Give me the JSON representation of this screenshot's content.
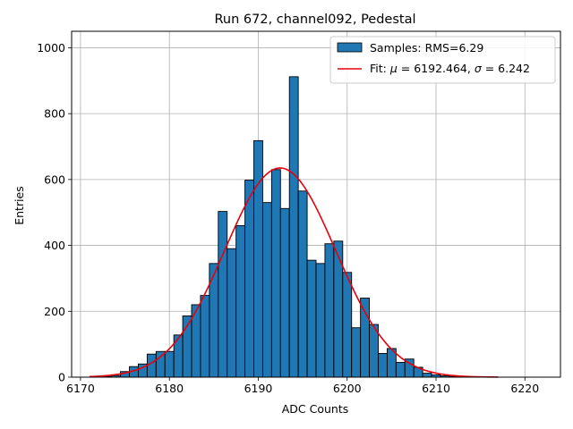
{
  "chart_data": {
    "type": "bar",
    "title": "Run 672, channel092, Pedestal",
    "xlabel": "ADC Counts",
    "ylabel": "Entries",
    "xlim": [
      6169,
      6224
    ],
    "ylim": [
      0,
      1050
    ],
    "grid": true,
    "legend_position": "top-right",
    "xticks": [
      6170,
      6180,
      6190,
      6200,
      6210,
      6220
    ],
    "yticks": [
      0,
      200,
      400,
      600,
      800,
      1000
    ],
    "bin_width": 1,
    "bins": [
      {
        "x": 6173,
        "value": 2
      },
      {
        "x": 6174,
        "value": 5
      },
      {
        "x": 6175,
        "value": 17
      },
      {
        "x": 6176,
        "value": 32
      },
      {
        "x": 6177,
        "value": 40
      },
      {
        "x": 6178,
        "value": 70
      },
      {
        "x": 6179,
        "value": 78
      },
      {
        "x": 6180,
        "value": 78
      },
      {
        "x": 6181,
        "value": 128
      },
      {
        "x": 6182,
        "value": 186
      },
      {
        "x": 6183,
        "value": 220
      },
      {
        "x": 6184,
        "value": 248
      },
      {
        "x": 6185,
        "value": 345
      },
      {
        "x": 6186,
        "value": 503
      },
      {
        "x": 6187,
        "value": 390
      },
      {
        "x": 6188,
        "value": 460
      },
      {
        "x": 6189,
        "value": 598
      },
      {
        "x": 6190,
        "value": 718
      },
      {
        "x": 6191,
        "value": 530
      },
      {
        "x": 6192,
        "value": 630
      },
      {
        "x": 6193,
        "value": 512
      },
      {
        "x": 6194,
        "value": 912
      },
      {
        "x": 6195,
        "value": 565
      },
      {
        "x": 6196,
        "value": 355
      },
      {
        "x": 6197,
        "value": 345
      },
      {
        "x": 6198,
        "value": 405
      },
      {
        "x": 6199,
        "value": 413
      },
      {
        "x": 6200,
        "value": 318
      },
      {
        "x": 6201,
        "value": 150
      },
      {
        "x": 6202,
        "value": 240
      },
      {
        "x": 6203,
        "value": 160
      },
      {
        "x": 6204,
        "value": 72
      },
      {
        "x": 6205,
        "value": 87
      },
      {
        "x": 6206,
        "value": 45
      },
      {
        "x": 6207,
        "value": 55
      },
      {
        "x": 6208,
        "value": 30
      },
      {
        "x": 6209,
        "value": 12
      },
      {
        "x": 6210,
        "value": 7
      },
      {
        "x": 6211,
        "value": 4
      },
      {
        "x": 6212,
        "value": 2
      }
    ],
    "fit": {
      "mu": 6192.464,
      "sigma": 6.242,
      "amplitude": 635,
      "x_range": [
        6171,
        6217
      ]
    },
    "series": [
      {
        "name": "Samples: RMS=6.29",
        "kind": "histogram",
        "color": "#1f77b4"
      },
      {
        "name_prefix": "Fit: ",
        "mu_symbol": "μ",
        "mu_text": " = 6192.464, ",
        "sigma_symbol": "σ",
        "sigma_text": " = 6.242",
        "kind": "line",
        "color": "#e8000b"
      }
    ]
  }
}
